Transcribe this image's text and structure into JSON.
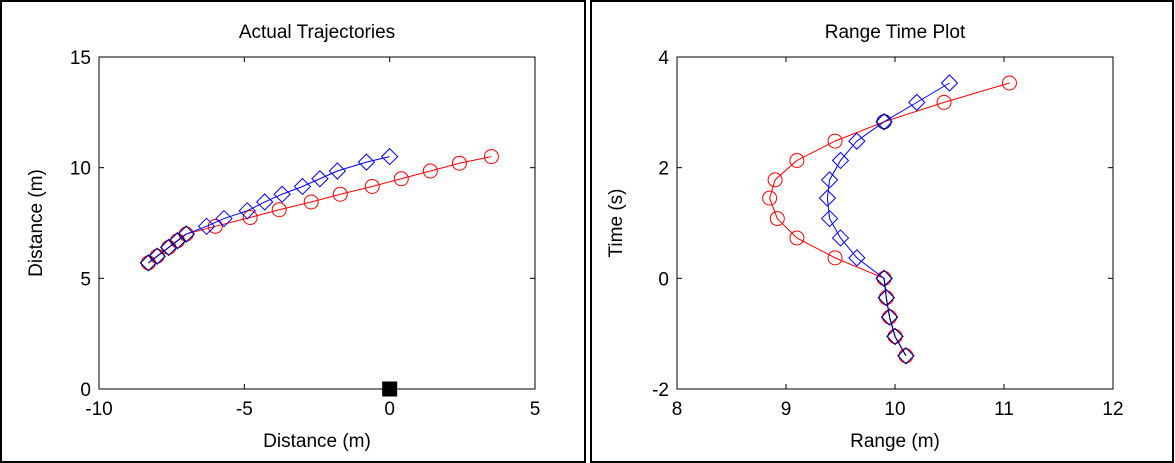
{
  "chart_data": [
    {
      "type": "line",
      "title": "Actual Trajectories",
      "xlabel": "Distance (m)",
      "ylabel": "Distance (m)",
      "xlim": [
        -10,
        5
      ],
      "ylim": [
        0,
        15
      ],
      "xticks": [
        -10,
        -5,
        0,
        5
      ],
      "yticks": [
        0,
        5,
        10,
        15
      ],
      "grid": false,
      "series": [
        {
          "marker": "circle",
          "color": "#ff0000",
          "points": [
            [
              -8.3,
              5.7
            ],
            [
              -8.0,
              6.0
            ],
            [
              -7.6,
              6.4
            ],
            [
              -7.3,
              6.7
            ],
            [
              -7.0,
              7.0
            ],
            [
              -6.0,
              7.35
            ],
            [
              -4.8,
              7.75
            ],
            [
              -3.8,
              8.1
            ],
            [
              -2.7,
              8.45
            ],
            [
              -1.7,
              8.8
            ],
            [
              -0.6,
              9.15
            ],
            [
              0.4,
              9.5
            ],
            [
              1.4,
              9.85
            ],
            [
              2.4,
              10.2
            ],
            [
              3.5,
              10.5
            ]
          ]
        },
        {
          "marker": "diamond",
          "color": "#0000ff",
          "points": [
            [
              -8.3,
              5.7
            ],
            [
              -8.0,
              6.0
            ],
            [
              -7.6,
              6.4
            ],
            [
              -7.3,
              6.7
            ],
            [
              -7.0,
              7.0
            ],
            [
              -6.3,
              7.35
            ],
            [
              -5.7,
              7.7
            ],
            [
              -4.9,
              8.05
            ],
            [
              -4.3,
              8.45
            ],
            [
              -3.7,
              8.8
            ],
            [
              -3.0,
              9.15
            ],
            [
              -2.4,
              9.5
            ],
            [
              -1.8,
              9.85
            ],
            [
              -0.8,
              10.25
            ],
            [
              0.0,
              10.5
            ]
          ]
        },
        {
          "marker": "diamond",
          "color": "#000080",
          "points": [
            [
              -8.3,
              5.7
            ],
            [
              -8.0,
              6.0
            ],
            [
              -7.6,
              6.4
            ],
            [
              -7.3,
              6.7
            ],
            [
              -7.0,
              7.0
            ]
          ]
        },
        {
          "marker": "square",
          "color": "#000000",
          "filled": true,
          "points": [
            [
              0,
              0
            ]
          ]
        }
      ]
    },
    {
      "type": "line",
      "title": "Range Time Plot",
      "xlabel": "Range (m)",
      "ylabel": "Time (s)",
      "xlim": [
        8,
        12
      ],
      "ylim": [
        -2,
        4
      ],
      "xticks": [
        8,
        9,
        10,
        11,
        12
      ],
      "yticks": [
        -2,
        0,
        2,
        4
      ],
      "grid": false,
      "series": [
        {
          "marker": "circle",
          "color": "#ff0000",
          "points": [
            [
              10.1,
              -1.4
            ],
            [
              10.0,
              -1.05
            ],
            [
              9.95,
              -0.7
            ],
            [
              9.92,
              -0.35
            ],
            [
              9.9,
              0.0
            ],
            [
              9.45,
              0.37
            ],
            [
              9.1,
              0.73
            ],
            [
              8.92,
              1.08
            ],
            [
              8.85,
              1.45
            ],
            [
              8.9,
              1.78
            ],
            [
              9.1,
              2.13
            ],
            [
              9.45,
              2.48
            ],
            [
              9.9,
              2.83
            ],
            [
              10.45,
              3.18
            ],
            [
              11.05,
              3.53
            ]
          ]
        },
        {
          "marker": "diamond",
          "color": "#0000ff",
          "points": [
            [
              10.1,
              -1.4
            ],
            [
              10.0,
              -1.05
            ],
            [
              9.95,
              -0.7
            ],
            [
              9.92,
              -0.35
            ],
            [
              9.9,
              0.0
            ],
            [
              9.65,
              0.37
            ],
            [
              9.5,
              0.73
            ],
            [
              9.4,
              1.08
            ],
            [
              9.38,
              1.45
            ],
            [
              9.4,
              1.78
            ],
            [
              9.5,
              2.13
            ],
            [
              9.65,
              2.48
            ],
            [
              9.9,
              2.83
            ],
            [
              10.2,
              3.18
            ],
            [
              10.5,
              3.53
            ]
          ]
        },
        {
          "marker": "diamond",
          "color": "#000080",
          "points": [
            [
              10.1,
              -1.4
            ],
            [
              10.0,
              -1.05
            ],
            [
              9.95,
              -0.7
            ],
            [
              9.92,
              -0.35
            ],
            [
              9.9,
              0.0
            ]
          ]
        },
        {
          "marker": "circle",
          "color": "#000080",
          "points": [
            [
              9.9,
              2.83
            ]
          ]
        }
      ]
    }
  ]
}
